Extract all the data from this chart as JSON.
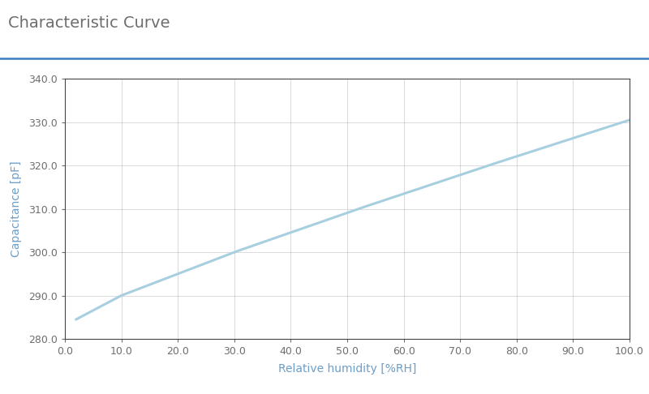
{
  "title": "Characteristic Curve",
  "xlabel": "Relative humidity [%RH]",
  "ylabel": "Capacitance [pF]",
  "x_data": [
    2.0,
    10.0,
    30.0,
    52.0,
    75.0,
    100.0
  ],
  "y_data": [
    284.5,
    290.0,
    300.0,
    310.0,
    320.0,
    330.5
  ],
  "line_color": "#a8cfe0",
  "line_width": 2.2,
  "xlim": [
    0.0,
    100.0
  ],
  "ylim": [
    280.0,
    340.0
  ],
  "xticks": [
    0.0,
    10.0,
    20.0,
    30.0,
    40.0,
    50.0,
    60.0,
    70.0,
    80.0,
    90.0,
    100.0
  ],
  "yticks": [
    280.0,
    290.0,
    300.0,
    310.0,
    320.0,
    330.0,
    340.0
  ],
  "title_color": "#6d6e70",
  "title_fontsize": 14,
  "axis_label_color": "#6d9ec8",
  "axis_label_fontsize": 10,
  "tick_label_color": "#6d6e70",
  "tick_label_fontsize": 9,
  "grid_color": "#999999",
  "grid_alpha": 0.5,
  "title_line_color": "#3a7dbf",
  "background_color": "#ffffff",
  "spine_color": "#444444"
}
